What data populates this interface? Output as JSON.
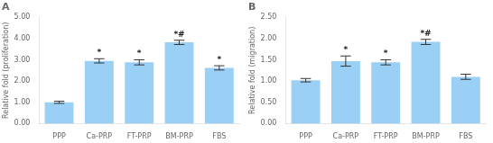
{
  "chart_data": [
    {
      "type": "bar",
      "title": "A",
      "categories": [
        "PPP",
        "Ca-PRP",
        "FT-PRP",
        "BM-PRP",
        "FBS"
      ],
      "values": [
        1.0,
        2.95,
        2.88,
        3.82,
        2.62
      ],
      "errors": [
        0.05,
        0.1,
        0.12,
        0.1,
        0.1
      ],
      "annotations": [
        null,
        "*",
        "*",
        "*#",
        "*"
      ],
      "ylabel": "Relative fold (proliferation)",
      "ylim": [
        0,
        5.0
      ],
      "yticks": [
        {
          "value": 0,
          "label": "0.00"
        },
        {
          "value": 1,
          "label": "1.00"
        },
        {
          "value": 2,
          "label": "2.00"
        },
        {
          "value": 3,
          "label": "3.00"
        },
        {
          "value": 4,
          "label": "4.00"
        },
        {
          "value": 5,
          "label": "5.00"
        }
      ],
      "grid": false
    },
    {
      "type": "bar",
      "title": "B",
      "categories": [
        "PPP",
        "Ca-PRP",
        "FT-PRP",
        "BM-PRP",
        "FBS"
      ],
      "values": [
        1.02,
        1.47,
        1.44,
        1.92,
        1.1
      ],
      "errors": [
        0.04,
        0.12,
        0.06,
        0.06,
        0.06
      ],
      "annotations": [
        null,
        "*",
        "*",
        "*#",
        null
      ],
      "ylabel": "Relative fold (migration)",
      "ylim": [
        0,
        2.5
      ],
      "yticks": [
        {
          "value": 0,
          "label": "0.00"
        },
        {
          "value": 0.5,
          "label": "0.50"
        },
        {
          "value": 1,
          "label": "1.00"
        },
        {
          "value": 1.5,
          "label": "1.50"
        },
        {
          "value": 2,
          "label": "2.00"
        },
        {
          "value": 2.5,
          "label": "2.50"
        }
      ],
      "grid": false
    }
  ]
}
